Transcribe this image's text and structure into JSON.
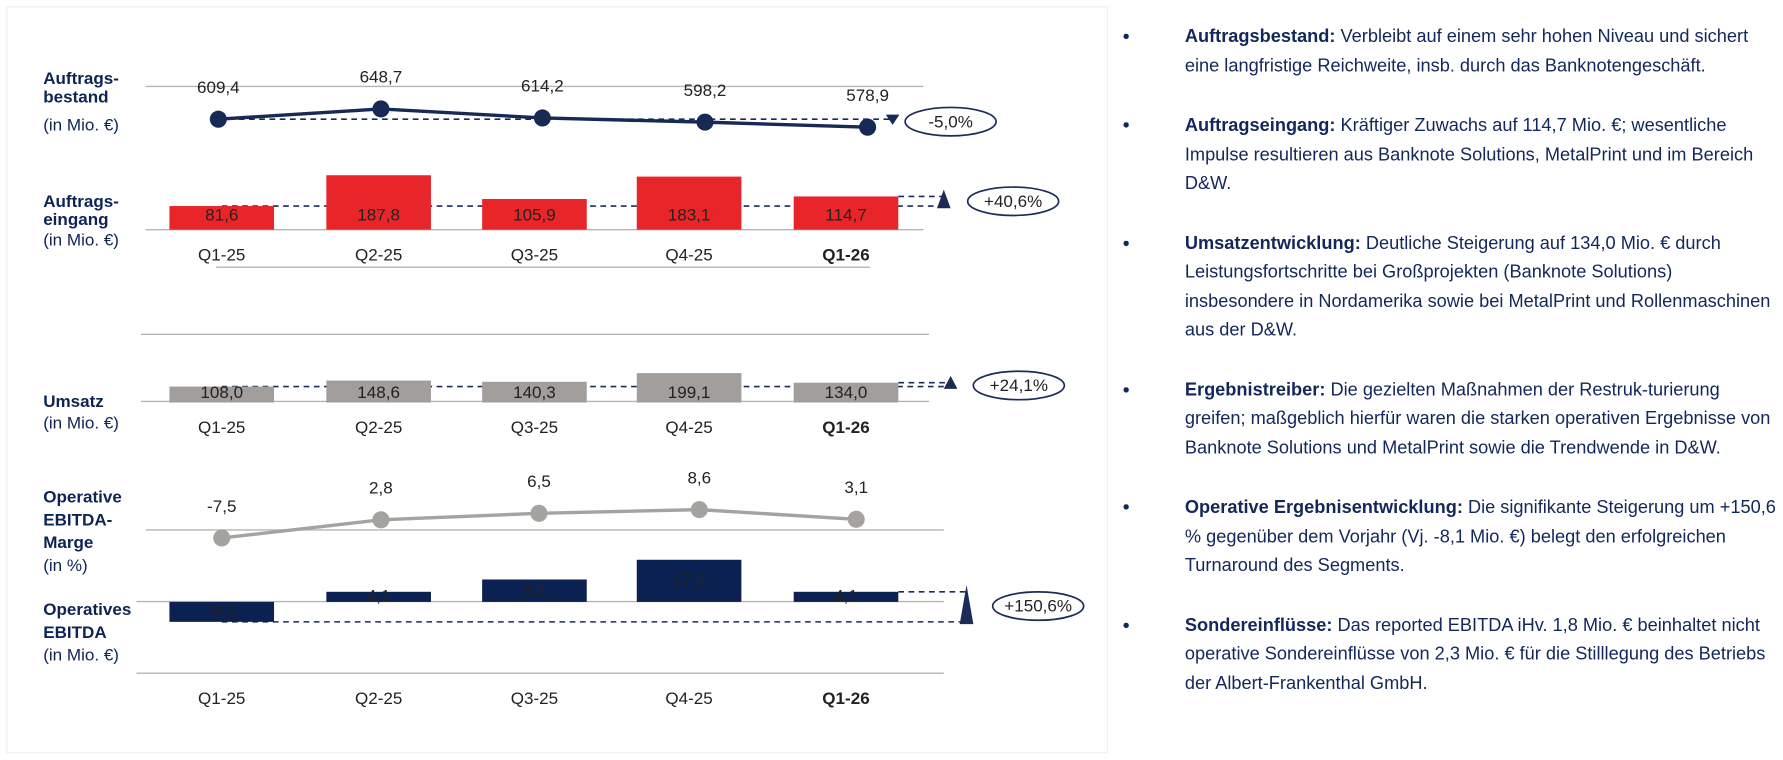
{
  "chart_data": [
    {
      "type": "line",
      "label": [
        "Auftrags-",
        "bestand"
      ],
      "unit": "(in Mio. €)",
      "values": [
        609.4,
        648.7,
        614.2,
        598.2,
        578.9
      ],
      "value_labels": [
        "609,4",
        "648,7",
        "614,2",
        "598,2",
        "578,9"
      ],
      "color": "#172a55",
      "ylim": [
        500,
        700
      ],
      "annotation": "-5,0%"
    },
    {
      "type": "bar",
      "label": [
        "Auftrags-",
        "eingang"
      ],
      "unit": "(in Mio. €)",
      "categories": [
        "Q1-25",
        "Q2-25",
        "Q3-25",
        "Q4-25",
        "Q1-26"
      ],
      "values": [
        81.6,
        187.8,
        105.9,
        183.1,
        114.7
      ],
      "value_labels": [
        "81,6",
        "187,8",
        "105,9",
        "183,1",
        "114,7"
      ],
      "color": "#e8262a",
      "ylim": [
        0,
        200
      ],
      "annotation": "+40,6%"
    },
    {
      "type": "bar",
      "label": [
        "Umsatz"
      ],
      "unit": "(in Mio. €)",
      "categories": [
        "Q1-25",
        "Q2-25",
        "Q3-25",
        "Q4-25",
        "Q1-26"
      ],
      "values": [
        108.0,
        148.6,
        140.3,
        199.1,
        134.0
      ],
      "value_labels": [
        "108,0",
        "148,6",
        "140,3",
        "199,1",
        "134,0"
      ],
      "color": "#a19e9b",
      "ylim": [
        0,
        200
      ],
      "annotation": "+24,1%"
    },
    {
      "type": "line",
      "label": [
        "Operative",
        "EBITDA-",
        "Marge"
      ],
      "unit": "(in %)",
      "values": [
        -7.5,
        2.8,
        6.5,
        8.6,
        3.1
      ],
      "value_labels": [
        "-7,5",
        "2,8",
        "6,5",
        "8,6",
        "3,1"
      ],
      "color": "#a5a3a0",
      "ylim": [
        -10,
        10
      ]
    },
    {
      "type": "bar",
      "label": [
        "Operatives",
        "EBITDA"
      ],
      "unit": "(in Mio. €)",
      "categories": [
        "Q1-25",
        "Q2-25",
        "Q3-25",
        "Q4-25",
        "Q1-26"
      ],
      "values": [
        -8.1,
        4.1,
        9.1,
        17.1,
        4.1
      ],
      "value_labels": [
        "-8,1",
        "4,1",
        "9,1",
        "17,1",
        "4,1"
      ],
      "color": "#0a2152",
      "ylim": [
        -10,
        20
      ],
      "annotation": "+150,6%"
    }
  ],
  "bullets": [
    {
      "heading": "Auftragsbestand:",
      "text": "Verbleibt auf einem sehr hohen Niveau und sichert eine langfristige Reichweite, insb. durch das Banknotengeschäft."
    },
    {
      "heading": "Auftragseingang:",
      "text": "Kräftiger Zuwachs auf 114,7 Mio. €; wesentliche Impulse resultieren aus Banknote Solutions, MetalPrint und im Bereich D&W."
    },
    {
      "heading": "Umsatzentwicklung:",
      "text": "Deutliche Steigerung auf 134,0 Mio. € durch Leistungsfortschritte bei Großprojekten (Banknote Solutions) insbesondere in Nordamerika sowie bei MetalPrint und Rollenmaschinen aus der D&W."
    },
    {
      "heading": "Ergebnistreiber:",
      "text": "Die gezielten Maßnahmen der Restruk-turierung greifen; maßgeblich hierfür waren die starken operativen Ergebnisse von Banknote Solutions und MetalPrint sowie die Trendwende in D&W."
    },
    {
      "heading": "Operative Ergebnisentwicklung:",
      "text": "Die signifikante Steigerung um +150,6 % gegenüber dem Vorjahr (Vj. -8,1 Mio. €) belegt den erfolgreichen Turnaround des Segments."
    },
    {
      "heading": "Sondereinflüsse:",
      "text": "Das reported EBITDA iHv. 1,8 Mio. € beinhaltet nicht operative Sondereinflüsse von 2,3 Mio. € für die Stilllegung des Betriebs der Albert-Frankenthal GmbH."
    }
  ]
}
